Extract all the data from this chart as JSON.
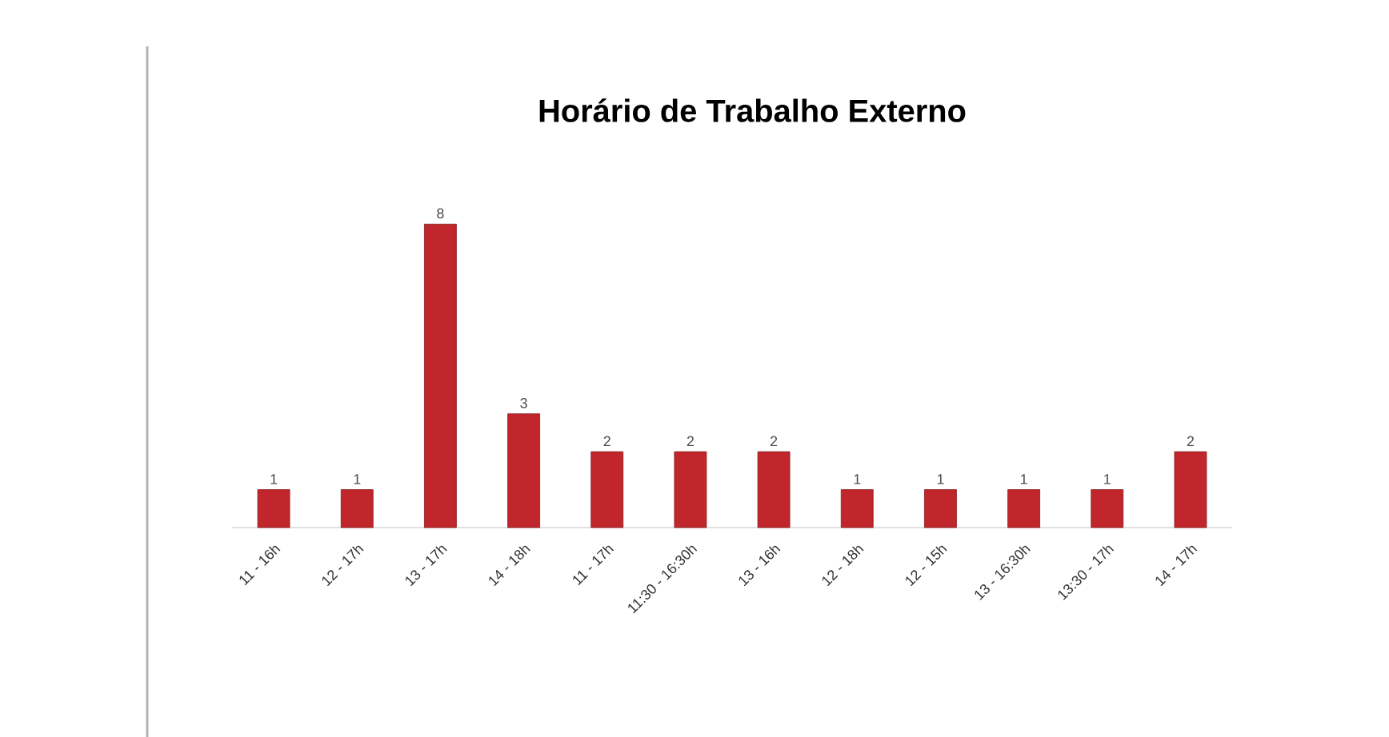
{
  "chart_data": {
    "type": "bar",
    "title": "Horário de Trabalho Externo",
    "categories": [
      "11 - 16h",
      "12 - 17h",
      "13 - 17h",
      "14 - 18h",
      "11 - 17h",
      "11:30 - 16:30h",
      "13 - 16h",
      "12 - 18h",
      "12 - 15h",
      "13 - 16:30h",
      "13:30 - 17h",
      "14 - 17h"
    ],
    "values": [
      1,
      1,
      8,
      3,
      2,
      2,
      2,
      1,
      1,
      1,
      1,
      2
    ],
    "color": "#c0262b",
    "data_labels": true
  }
}
